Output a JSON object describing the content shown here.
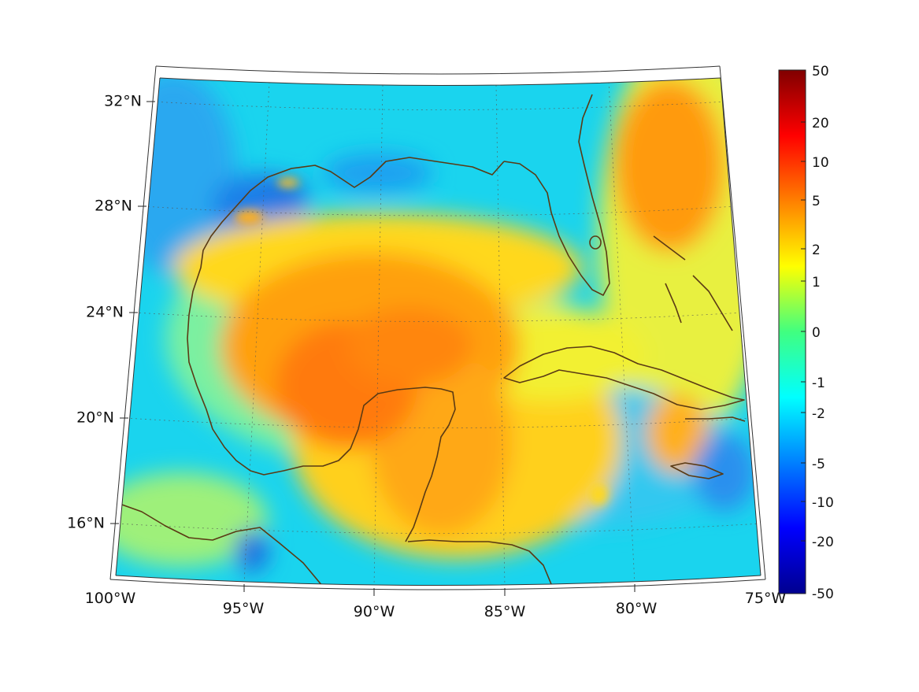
{
  "map": {
    "lat_labels": [
      "32°N",
      "28°N",
      "24°N",
      "20°N",
      "16°N"
    ],
    "lon_labels": [
      "100°W",
      "95°W",
      "90°W",
      "85°W",
      "80°W",
      "75°W"
    ],
    "extent": {
      "lon": [
        -100,
        -75
      ],
      "lat": [
        14,
        33
      ]
    },
    "projection": "conic",
    "graticule": "dotted",
    "coastline_color": "#5a3a14"
  },
  "colorbar": {
    "tick_labels": [
      "50",
      "20",
      "10",
      "5",
      "2",
      "1",
      "0",
      "-1",
      "-2",
      "-5",
      "-10",
      "-20",
      "-50"
    ],
    "colormap": "jet",
    "scale": "symmetric-log",
    "range": [
      -50,
      50
    ]
  }
}
